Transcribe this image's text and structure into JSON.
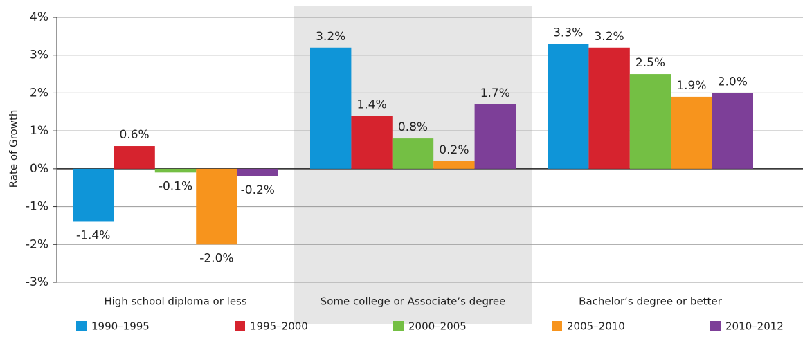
{
  "chart_data": {
    "type": "bar",
    "y_label": "Rate of Growth",
    "categories": [
      "High school diploma or less",
      "Some college or Associate’s degree",
      "Bachelor’s degree or better"
    ],
    "series": [
      {
        "name": "1990–1995",
        "color": "#0f95d8",
        "values": [
          -1.4,
          3.2,
          3.3
        ],
        "value_labels": [
          "-1.4%",
          "3.2%",
          "3.3%"
        ]
      },
      {
        "name": "1995–2000",
        "color": "#d6232e",
        "values": [
          0.6,
          1.4,
          3.2
        ],
        "value_labels": [
          "0.6%",
          "1.4%",
          "3.2%"
        ]
      },
      {
        "name": "2000–2005",
        "color": "#74bf44",
        "values": [
          -0.1,
          0.8,
          2.5
        ],
        "value_labels": [
          "-0.1%",
          "0.8%",
          "2.5%"
        ]
      },
      {
        "name": "2005–2010",
        "color": "#f7941d",
        "values": [
          -2.0,
          0.2,
          1.9
        ],
        "value_labels": [
          "-2.0%",
          "0.2%",
          "1.9%"
        ]
      },
      {
        "name": "2010–2012",
        "color": "#7d3f98",
        "values": [
          -0.2,
          1.7,
          2.0
        ],
        "value_labels": [
          "-0.2%",
          "1.7%",
          "2.0%"
        ]
      }
    ],
    "ylim": [
      -3,
      4
    ],
    "yticks": [
      {
        "value": -3,
        "label": "-3%"
      },
      {
        "value": -2,
        "label": "-2%"
      },
      {
        "value": -1,
        "label": "-1%"
      },
      {
        "value": 0,
        "label": "0%"
      },
      {
        "value": 1,
        "label": "1%"
      },
      {
        "value": 2,
        "label": "2%"
      },
      {
        "value": 3,
        "label": "3%"
      },
      {
        "value": 4,
        "label": "4%"
      }
    ],
    "grid": true,
    "highlight_category": 1,
    "highlight_color": "#e6e6e6",
    "legend": "bottom"
  }
}
